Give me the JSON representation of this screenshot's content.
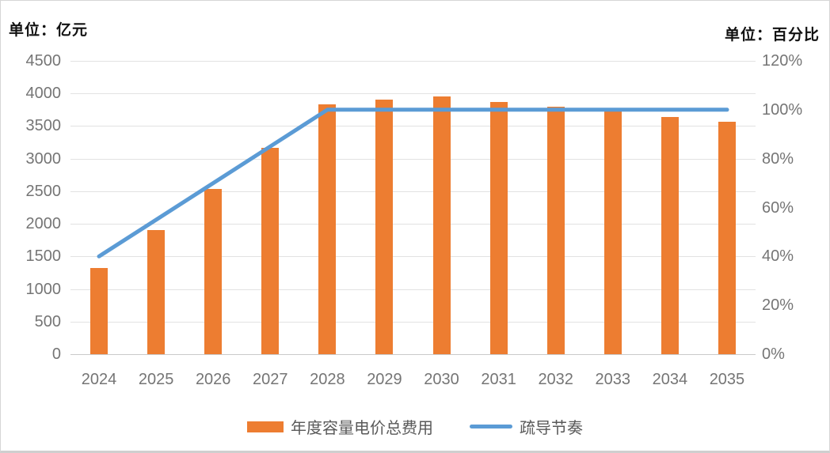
{
  "chart_data": {
    "type": "bar",
    "subtype": "combo-bar-line-dual-axis",
    "title": "",
    "categories": [
      "2024",
      "2025",
      "2026",
      "2027",
      "2028",
      "2029",
      "2030",
      "2031",
      "2032",
      "2033",
      "2034",
      "2035"
    ],
    "series": [
      {
        "name": "年度容量电价总费用",
        "type": "bar",
        "axis": "left",
        "color": "#ED7D31",
        "values": [
          1320,
          1910,
          2540,
          3170,
          3830,
          3910,
          3960,
          3870,
          3800,
          3730,
          3640,
          3570
        ]
      },
      {
        "name": "疏导节奏",
        "type": "line",
        "axis": "right",
        "color": "#5B9BD5",
        "values": [
          40,
          55,
          70,
          85,
          100,
          100,
          100,
          100,
          100,
          100,
          100,
          100
        ],
        "unit": "%"
      }
    ],
    "left_axis": {
      "title": "单位：亿元",
      "min": 0,
      "max": 4500,
      "step": 500,
      "tick_labels": [
        "4500",
        "4000",
        "3500",
        "3000",
        "2500",
        "2000",
        "1500",
        "1000",
        "500",
        "0"
      ]
    },
    "right_axis": {
      "title": "单位：百分比",
      "min": 0,
      "max": 120,
      "step": 20,
      "tick_labels": [
        "120%",
        "100%",
        "80%",
        "60%",
        "40%",
        "20%",
        "0%"
      ]
    },
    "grid": "horizontal",
    "legend_position": "bottom",
    "colors": {
      "bar": "#ED7D31",
      "line": "#5B9BD5",
      "gridline": "#e2e2e2",
      "baseline": "#c9c9c9",
      "tick_text": "#757575",
      "legend_text": "#595959",
      "title_text": "#111111",
      "background": "#ffffff"
    }
  }
}
